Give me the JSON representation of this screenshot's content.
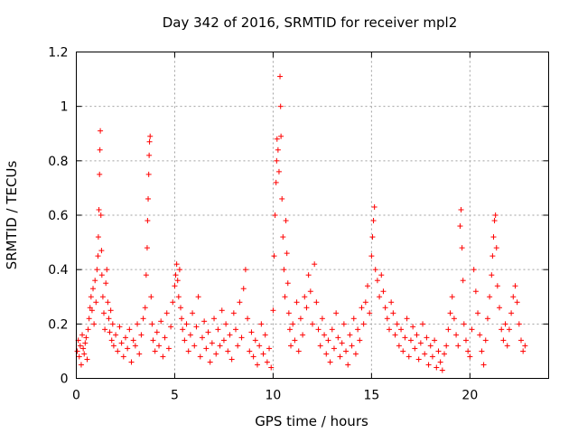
{
  "chart_data": {
    "type": "scatter",
    "title": "Day 342 of 2016, SRMTID for receiver mpl2",
    "xlabel": "GPS time / hours",
    "ylabel": "SRMTID / TECUs",
    "xlim": [
      0,
      24
    ],
    "ylim": [
      0,
      1.2
    ],
    "xticks": [
      0,
      5,
      10,
      15,
      20
    ],
    "yticks": [
      0,
      0.2,
      0.4,
      0.6,
      0.8,
      1,
      1.2
    ],
    "xtick_labels": [
      "0",
      "5",
      "10",
      "15",
      "20"
    ],
    "ytick_labels": [
      "0",
      "0.2",
      "0.4",
      "0.6",
      "0.8",
      "1",
      "1.2"
    ],
    "grid": true,
    "marker": "+",
    "series": [
      {
        "name": "SRMTID",
        "color": "#ff0000",
        "points": [
          [
            0.05,
            0.1
          ],
          [
            0.1,
            0.14
          ],
          [
            0.15,
            0.08
          ],
          [
            0.2,
            0.12
          ],
          [
            0.25,
            0.05
          ],
          [
            0.3,
            0.16
          ],
          [
            0.35,
            0.11
          ],
          [
            0.4,
            0.09
          ],
          [
            0.45,
            0.13
          ],
          [
            0.5,
            0.15
          ],
          [
            0.55,
            0.07
          ],
          [
            0.6,
            0.18
          ],
          [
            0.65,
            0.22
          ],
          [
            0.7,
            0.26
          ],
          [
            0.75,
            0.3
          ],
          [
            0.8,
            0.25
          ],
          [
            0.85,
            0.33
          ],
          [
            0.9,
            0.2
          ],
          [
            0.95,
            0.36
          ],
          [
            1.0,
            0.28
          ],
          [
            1.05,
            0.4
          ],
          [
            1.1,
            0.45
          ],
          [
            1.12,
            0.52
          ],
          [
            1.15,
            0.62
          ],
          [
            1.18,
            0.75
          ],
          [
            1.2,
            0.84
          ],
          [
            1.22,
            0.91
          ],
          [
            1.25,
            0.6
          ],
          [
            1.28,
            0.47
          ],
          [
            1.3,
            0.38
          ],
          [
            1.35,
            0.3
          ],
          [
            1.4,
            0.24
          ],
          [
            1.45,
            0.18
          ],
          [
            1.5,
            0.35
          ],
          [
            1.55,
            0.4
          ],
          [
            1.6,
            0.28
          ],
          [
            1.65,
            0.22
          ],
          [
            1.7,
            0.17
          ],
          [
            1.75,
            0.25
          ],
          [
            1.8,
            0.14
          ],
          [
            1.85,
            0.2
          ],
          [
            1.9,
            0.12
          ],
          [
            2.0,
            0.16
          ],
          [
            2.1,
            0.1
          ],
          [
            2.2,
            0.19
          ],
          [
            2.3,
            0.13
          ],
          [
            2.4,
            0.08
          ],
          [
            2.5,
            0.15
          ],
          [
            2.6,
            0.11
          ],
          [
            2.7,
            0.18
          ],
          [
            2.8,
            0.06
          ],
          [
            2.9,
            0.14
          ],
          [
            3.0,
            0.12
          ],
          [
            3.1,
            0.2
          ],
          [
            3.2,
            0.09
          ],
          [
            3.3,
            0.16
          ],
          [
            3.4,
            0.22
          ],
          [
            3.5,
            0.26
          ],
          [
            3.55,
            0.38
          ],
          [
            3.6,
            0.48
          ],
          [
            3.62,
            0.58
          ],
          [
            3.65,
            0.66
          ],
          [
            3.68,
            0.75
          ],
          [
            3.7,
            0.82
          ],
          [
            3.72,
            0.87
          ],
          [
            3.75,
            0.89
          ],
          [
            3.8,
            0.3
          ],
          [
            3.85,
            0.2
          ],
          [
            3.9,
            0.14
          ],
          [
            4.0,
            0.1
          ],
          [
            4.1,
            0.17
          ],
          [
            4.2,
            0.12
          ],
          [
            4.3,
            0.21
          ],
          [
            4.4,
            0.08
          ],
          [
            4.5,
            0.15
          ],
          [
            4.6,
            0.24
          ],
          [
            4.7,
            0.11
          ],
          [
            4.8,
            0.19
          ],
          [
            4.9,
            0.28
          ],
          [
            5.0,
            0.34
          ],
          [
            5.05,
            0.38
          ],
          [
            5.1,
            0.42
          ],
          [
            5.15,
            0.36
          ],
          [
            5.2,
            0.3
          ],
          [
            5.25,
            0.4
          ],
          [
            5.3,
            0.26
          ],
          [
            5.35,
            0.22
          ],
          [
            5.4,
            0.18
          ],
          [
            5.5,
            0.14
          ],
          [
            5.6,
            0.2
          ],
          [
            5.7,
            0.1
          ],
          [
            5.8,
            0.16
          ],
          [
            5.9,
            0.24
          ],
          [
            6.0,
            0.12
          ],
          [
            6.1,
            0.19
          ],
          [
            6.2,
            0.3
          ],
          [
            6.3,
            0.08
          ],
          [
            6.4,
            0.15
          ],
          [
            6.5,
            0.21
          ],
          [
            6.6,
            0.11
          ],
          [
            6.7,
            0.17
          ],
          [
            6.8,
            0.06
          ],
          [
            6.9,
            0.13
          ],
          [
            7.0,
            0.22
          ],
          [
            7.1,
            0.09
          ],
          [
            7.2,
            0.18
          ],
          [
            7.3,
            0.12
          ],
          [
            7.4,
            0.25
          ],
          [
            7.5,
            0.14
          ],
          [
            7.6,
            0.2
          ],
          [
            7.7,
            0.1
          ],
          [
            7.8,
            0.16
          ],
          [
            7.9,
            0.07
          ],
          [
            8.0,
            0.24
          ],
          [
            8.1,
            0.18
          ],
          [
            8.2,
            0.12
          ],
          [
            8.3,
            0.28
          ],
          [
            8.4,
            0.15
          ],
          [
            8.5,
            0.33
          ],
          [
            8.6,
            0.4
          ],
          [
            8.7,
            0.22
          ],
          [
            8.8,
            0.1
          ],
          [
            8.9,
            0.17
          ],
          [
            9.0,
            0.08
          ],
          [
            9.1,
            0.14
          ],
          [
            9.2,
            0.05
          ],
          [
            9.3,
            0.12
          ],
          [
            9.4,
            0.2
          ],
          [
            9.5,
            0.09
          ],
          [
            9.6,
            0.16
          ],
          [
            9.7,
            0.06
          ],
          [
            9.8,
            0.11
          ],
          [
            9.9,
            0.04
          ],
          [
            10.0,
            0.25
          ],
          [
            10.05,
            0.45
          ],
          [
            10.1,
            0.6
          ],
          [
            10.15,
            0.72
          ],
          [
            10.18,
            0.8
          ],
          [
            10.2,
            0.88
          ],
          [
            10.25,
            0.84
          ],
          [
            10.3,
            0.76
          ],
          [
            10.35,
            1.11
          ],
          [
            10.38,
            1.0
          ],
          [
            10.4,
            0.89
          ],
          [
            10.45,
            0.66
          ],
          [
            10.5,
            0.52
          ],
          [
            10.55,
            0.4
          ],
          [
            10.6,
            0.3
          ],
          [
            10.65,
            0.58
          ],
          [
            10.7,
            0.46
          ],
          [
            10.75,
            0.35
          ],
          [
            10.8,
            0.24
          ],
          [
            10.85,
            0.18
          ],
          [
            10.9,
            0.12
          ],
          [
            11.0,
            0.2
          ],
          [
            11.1,
            0.14
          ],
          [
            11.2,
            0.28
          ],
          [
            11.3,
            0.1
          ],
          [
            11.4,
            0.22
          ],
          [
            11.5,
            0.16
          ],
          [
            11.6,
            0.3
          ],
          [
            11.7,
            0.26
          ],
          [
            11.8,
            0.38
          ],
          [
            11.9,
            0.32
          ],
          [
            12.0,
            0.2
          ],
          [
            12.1,
            0.42
          ],
          [
            12.2,
            0.28
          ],
          [
            12.3,
            0.18
          ],
          [
            12.4,
            0.12
          ],
          [
            12.5,
            0.22
          ],
          [
            12.6,
            0.16
          ],
          [
            12.7,
            0.09
          ],
          [
            12.8,
            0.14
          ],
          [
            12.9,
            0.06
          ],
          [
            13.0,
            0.18
          ],
          [
            13.1,
            0.11
          ],
          [
            13.2,
            0.24
          ],
          [
            13.3,
            0.15
          ],
          [
            13.4,
            0.08
          ],
          [
            13.5,
            0.13
          ],
          [
            13.6,
            0.2
          ],
          [
            13.7,
            0.1
          ],
          [
            13.8,
            0.05
          ],
          [
            13.9,
            0.16
          ],
          [
            14.0,
            0.12
          ],
          [
            14.1,
            0.22
          ],
          [
            14.2,
            0.09
          ],
          [
            14.3,
            0.18
          ],
          [
            14.4,
            0.14
          ],
          [
            14.5,
            0.26
          ],
          [
            14.6,
            0.2
          ],
          [
            14.7,
            0.28
          ],
          [
            14.8,
            0.34
          ],
          [
            14.9,
            0.24
          ],
          [
            15.0,
            0.45
          ],
          [
            15.05,
            0.52
          ],
          [
            15.1,
            0.58
          ],
          [
            15.15,
            0.63
          ],
          [
            15.2,
            0.4
          ],
          [
            15.3,
            0.36
          ],
          [
            15.4,
            0.3
          ],
          [
            15.5,
            0.38
          ],
          [
            15.6,
            0.32
          ],
          [
            15.7,
            0.26
          ],
          [
            15.8,
            0.22
          ],
          [
            15.9,
            0.18
          ],
          [
            16.0,
            0.28
          ],
          [
            16.1,
            0.24
          ],
          [
            16.2,
            0.16
          ],
          [
            16.3,
            0.2
          ],
          [
            16.4,
            0.12
          ],
          [
            16.5,
            0.18
          ],
          [
            16.6,
            0.1
          ],
          [
            16.7,
            0.15
          ],
          [
            16.8,
            0.22
          ],
          [
            16.9,
            0.08
          ],
          [
            17.0,
            0.14
          ],
          [
            17.1,
            0.19
          ],
          [
            17.2,
            0.11
          ],
          [
            17.3,
            0.16
          ],
          [
            17.4,
            0.07
          ],
          [
            17.5,
            0.13
          ],
          [
            17.6,
            0.2
          ],
          [
            17.7,
            0.09
          ],
          [
            17.8,
            0.15
          ],
          [
            17.9,
            0.05
          ],
          [
            18.0,
            0.12
          ],
          [
            18.1,
            0.08
          ],
          [
            18.2,
            0.14
          ],
          [
            18.3,
            0.04
          ],
          [
            18.4,
            0.1
          ],
          [
            18.5,
            0.06
          ],
          [
            18.6,
            0.03
          ],
          [
            18.7,
            0.09
          ],
          [
            18.8,
            0.12
          ],
          [
            18.9,
            0.18
          ],
          [
            19.0,
            0.24
          ],
          [
            19.1,
            0.3
          ],
          [
            19.2,
            0.22
          ],
          [
            19.3,
            0.16
          ],
          [
            19.4,
            0.12
          ],
          [
            19.5,
            0.56
          ],
          [
            19.55,
            0.62
          ],
          [
            19.6,
            0.48
          ],
          [
            19.65,
            0.36
          ],
          [
            19.7,
            0.2
          ],
          [
            19.8,
            0.14
          ],
          [
            19.9,
            0.1
          ],
          [
            20.0,
            0.08
          ],
          [
            20.1,
            0.18
          ],
          [
            20.2,
            0.4
          ],
          [
            20.3,
            0.32
          ],
          [
            20.4,
            0.24
          ],
          [
            20.5,
            0.16
          ],
          [
            20.6,
            0.1
          ],
          [
            20.7,
            0.05
          ],
          [
            20.8,
            0.14
          ],
          [
            20.9,
            0.22
          ],
          [
            21.0,
            0.3
          ],
          [
            21.1,
            0.38
          ],
          [
            21.15,
            0.45
          ],
          [
            21.2,
            0.52
          ],
          [
            21.25,
            0.58
          ],
          [
            21.3,
            0.6
          ],
          [
            21.35,
            0.48
          ],
          [
            21.4,
            0.34
          ],
          [
            21.5,
            0.26
          ],
          [
            21.6,
            0.18
          ],
          [
            21.7,
            0.14
          ],
          [
            21.8,
            0.2
          ],
          [
            21.9,
            0.12
          ],
          [
            22.0,
            0.18
          ],
          [
            22.1,
            0.24
          ],
          [
            22.2,
            0.3
          ],
          [
            22.3,
            0.34
          ],
          [
            22.4,
            0.28
          ],
          [
            22.5,
            0.2
          ],
          [
            22.6,
            0.14
          ],
          [
            22.7,
            0.1
          ],
          [
            22.8,
            0.12
          ]
        ]
      }
    ]
  }
}
